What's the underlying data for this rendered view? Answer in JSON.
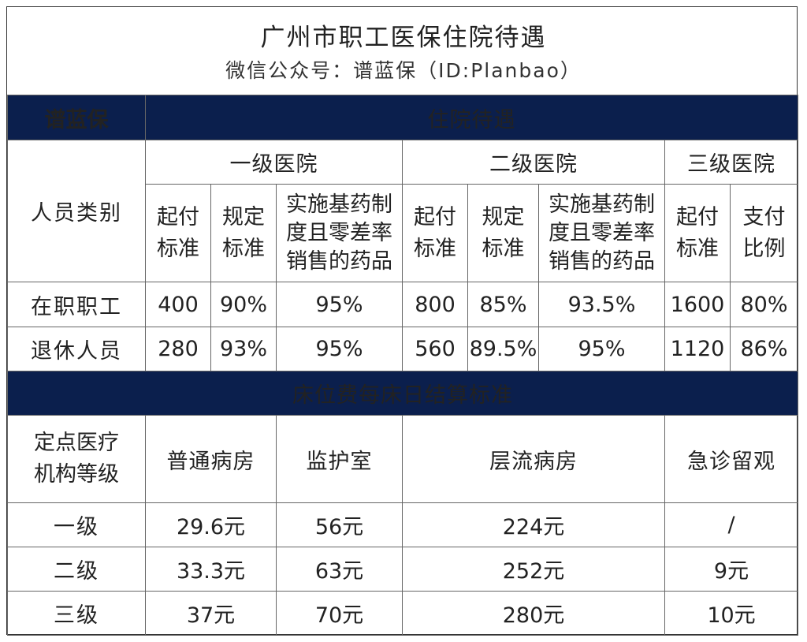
{
  "header": {
    "title": "广州市职工医保住院待遇",
    "subtitle": "微信公众号：谱蓝保（ID:Planbao）"
  },
  "brand": "谱蓝保",
  "section1": {
    "title": "住院待遇",
    "category_label": "人员类别",
    "hospitals": [
      "一级医院",
      "二级医院",
      "三级医院"
    ],
    "subheaders": {
      "h1": [
        [
          "起付",
          "标准"
        ],
        [
          "规定",
          "标准"
        ],
        [
          "实施基药制",
          "度且零差率",
          "销售的药品"
        ]
      ],
      "h2": [
        [
          "起付",
          "标准"
        ],
        [
          "规定",
          "标准"
        ],
        [
          "实施基药制",
          "度且零差率",
          "销售的药品"
        ]
      ],
      "h3": [
        [
          "起付",
          "标准"
        ],
        [
          "支付",
          "比例"
        ]
      ]
    },
    "rows": [
      {
        "label": "在职职工",
        "values": [
          "400",
          "90%",
          "95%",
          "800",
          "85%",
          "93.5%",
          "1600",
          "80%"
        ]
      },
      {
        "label": "退休人员",
        "values": [
          "280",
          "93%",
          "95%",
          "560",
          "89.5%",
          "95%",
          "1120",
          "86%"
        ]
      }
    ]
  },
  "section2": {
    "title": "床位费每床日结算标准",
    "label": [
      "定点医疗",
      "机构等级"
    ],
    "columns": [
      "普通病房",
      "监护室",
      "层流病房",
      "急诊留观"
    ],
    "rows": [
      {
        "label": "一级",
        "values": [
          "29.6元",
          "56元",
          "224元",
          "/"
        ]
      },
      {
        "label": "二级",
        "values": [
          "33.3元",
          "63元",
          "252元",
          "9元"
        ]
      },
      {
        "label": "三级",
        "values": [
          "37元",
          "70元",
          "280元",
          "10元"
        ]
      }
    ]
  },
  "colors": {
    "navy": "#0b1f4d",
    "brand_orange": "#f5a623"
  }
}
